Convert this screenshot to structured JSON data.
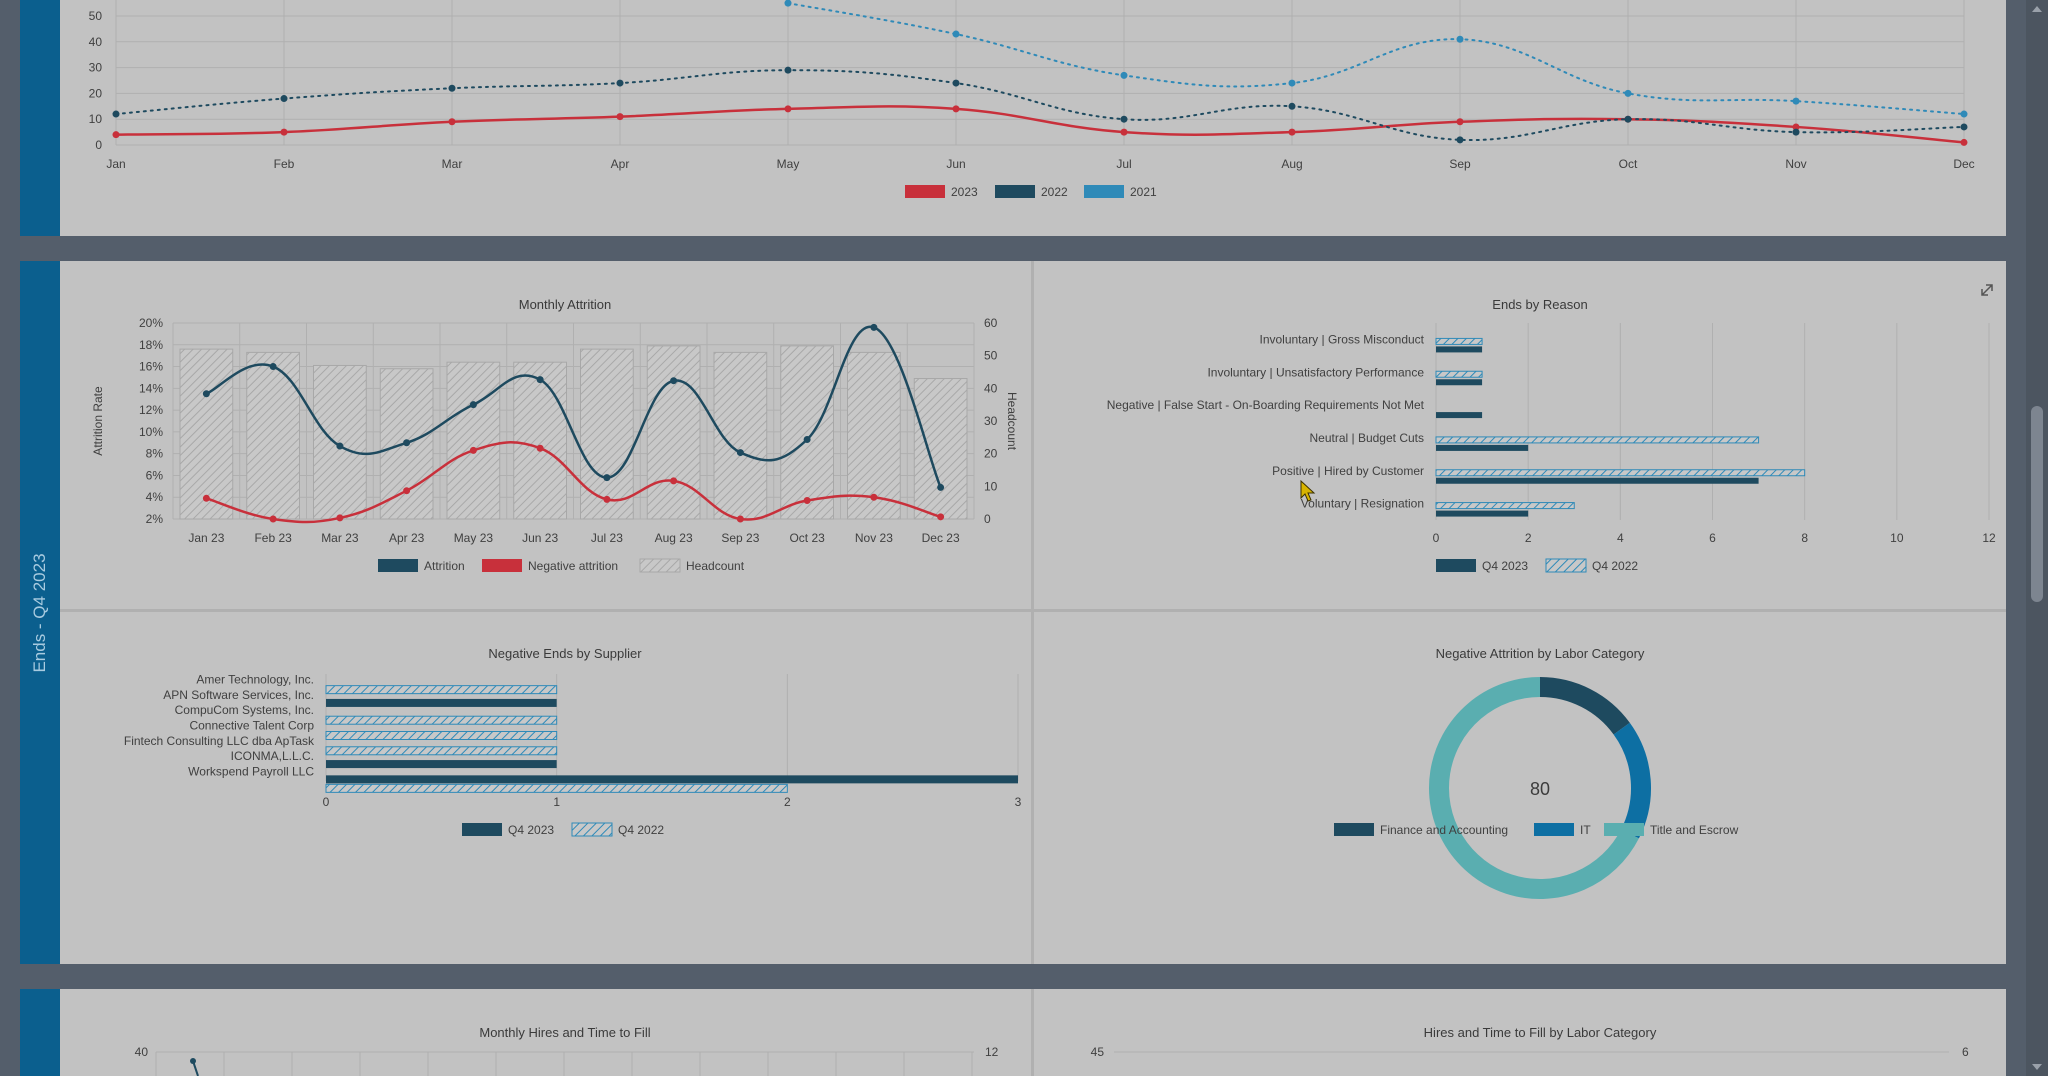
{
  "colors": {
    "dark_series": "#1e4a5f",
    "red_series": "#c8303b",
    "light_blue": "#2f8ab8",
    "teal": "#5aaeb0",
    "mid_blue": "#0d6fa3",
    "accent_bar": "#0b5f8e"
  },
  "section_label": "Ends - Q4 2023",
  "trend_chart": {
    "chart_data": {
      "type": "line",
      "title": "",
      "categories": [
        "Jan",
        "Feb",
        "Mar",
        "Apr",
        "May",
        "Jun",
        "Jul",
        "Aug",
        "Sep",
        "Oct",
        "Nov",
        "Dec"
      ],
      "y_ticks": [
        "0",
        "10",
        "20",
        "30",
        "40",
        "50"
      ],
      "ylim": [
        0,
        50
      ],
      "series": [
        {
          "name": "2023",
          "values": [
            4,
            5,
            9,
            11,
            14,
            14,
            5,
            5,
            9,
            10,
            7,
            1
          ],
          "color": "#c8303b",
          "dotted": false
        },
        {
          "name": "2022",
          "values": [
            12,
            18,
            22,
            24,
            29,
            24,
            10,
            15,
            2,
            10,
            5,
            7
          ],
          "color": "#1e4a5f",
          "dotted": true
        },
        {
          "name": "2021",
          "values": [
            null,
            null,
            null,
            null,
            55,
            43,
            27,
            24,
            41,
            20,
            17,
            12
          ],
          "color": "#2f8ab8",
          "dotted": true
        }
      ],
      "legend": "bottom"
    }
  },
  "monthly_attrition": {
    "chart_data": {
      "type": "bar",
      "title": "Monthly Attrition",
      "categories": [
        "Jan 23",
        "Feb 23",
        "Mar 23",
        "Apr 23",
        "May 23",
        "Jun 23",
        "Jul 23",
        "Aug 23",
        "Sep 23",
        "Oct 23",
        "Nov 23",
        "Dec 23"
      ],
      "ylabel": "Attrition Rate",
      "y2label": "Headcount",
      "y_ticks": [
        "2%",
        "4%",
        "6%",
        "8%",
        "10%",
        "12%",
        "14%",
        "16%",
        "18%",
        "20%"
      ],
      "y2_ticks": [
        "0",
        "10",
        "20",
        "30",
        "40",
        "50",
        "60"
      ],
      "ylim": [
        2,
        20
      ],
      "y2lim": [
        0,
        60
      ],
      "series": [
        {
          "name": "Attrition",
          "type": "line",
          "values": [
            13.5,
            16,
            8.7,
            9,
            12.5,
            14.8,
            5.8,
            14.7,
            8.1,
            9.3,
            19.6,
            4.9
          ]
        },
        {
          "name": "Negative attrition",
          "type": "line",
          "values": [
            3.9,
            2,
            2.1,
            4.6,
            8.3,
            8.5,
            3.8,
            5.5,
            2,
            3.7,
            4,
            2.2
          ]
        },
        {
          "name": "Headcount",
          "type": "bar",
          "values": [
            52,
            51,
            47,
            46,
            48,
            48,
            52,
            53,
            51,
            53,
            51,
            43
          ]
        }
      ],
      "legend": "bottom"
    }
  },
  "ends_by_reason": {
    "chart_data": {
      "type": "bar",
      "orientation": "horizontal",
      "title": "Ends by Reason",
      "categories": [
        "Involuntary | Gross Misconduct",
        "Involuntary | Unsatisfactory Performance",
        "Negative | False Start - On-Boarding Requirements Not Met",
        "Neutral | Budget Cuts",
        "Positive | Hired by Customer",
        "Voluntary | Resignation"
      ],
      "x_ticks": [
        "0",
        "2",
        "4",
        "6",
        "8",
        "10",
        "12"
      ],
      "xlim": [
        0,
        12
      ],
      "series": [
        {
          "name": "Q4 2023",
          "values": [
            1,
            1,
            1,
            2,
            7,
            2
          ]
        },
        {
          "name": "Q4 2022",
          "values": [
            1,
            1,
            0,
            7,
            8,
            3
          ]
        }
      ],
      "legend": "bottom"
    },
    "expand_icon": "expand-icon"
  },
  "negative_ends_supplier": {
    "chart_data": {
      "type": "bar",
      "orientation": "horizontal",
      "title": "Negative Ends by Supplier",
      "categories": [
        "Amer Technology, Inc.",
        "APN Software Services, Inc.",
        "CompuCom Systems, Inc.",
        "Connective Talent Corp",
        "Fintech Consulting LLC dba ApTask",
        "ICONMA,L.L.C.",
        "Workspend Payroll LLC"
      ],
      "x_ticks": [
        "0",
        "1",
        "2",
        "3"
      ],
      "xlim": [
        0,
        3
      ],
      "series": [
        {
          "name": "Q4 2023",
          "values": [
            0,
            1,
            0,
            0,
            0,
            1,
            3
          ]
        },
        {
          "name": "Q4 2022",
          "values": [
            1,
            0,
            1,
            1,
            1,
            0,
            2
          ]
        }
      ],
      "legend": "bottom"
    }
  },
  "negative_attrition_labor": {
    "chart_data": {
      "type": "pie",
      "title": "Negative Attrition by Labor Category",
      "center_label": "80",
      "slices": [
        {
          "name": "Finance and Accounting",
          "value": 12,
          "color": "#1e4a5f"
        },
        {
          "name": "IT",
          "value": 14,
          "color": "#0d6fa3"
        },
        {
          "name": "Title and Escrow",
          "value": 54,
          "color": "#5aaeb0"
        }
      ],
      "legend": "bottom"
    }
  },
  "monthly_hires": {
    "chart_data": {
      "type": "bar",
      "title": "Monthly Hires and Time to Fill",
      "y_ticks_left_top": "40",
      "y_ticks_right_top": "12"
    }
  },
  "hires_labor": {
    "chart_data": {
      "type": "bar",
      "title": "Hires and Time to Fill by Labor Category",
      "y_ticks_left_top": "45",
      "y_ticks_right_top": "6"
    }
  }
}
